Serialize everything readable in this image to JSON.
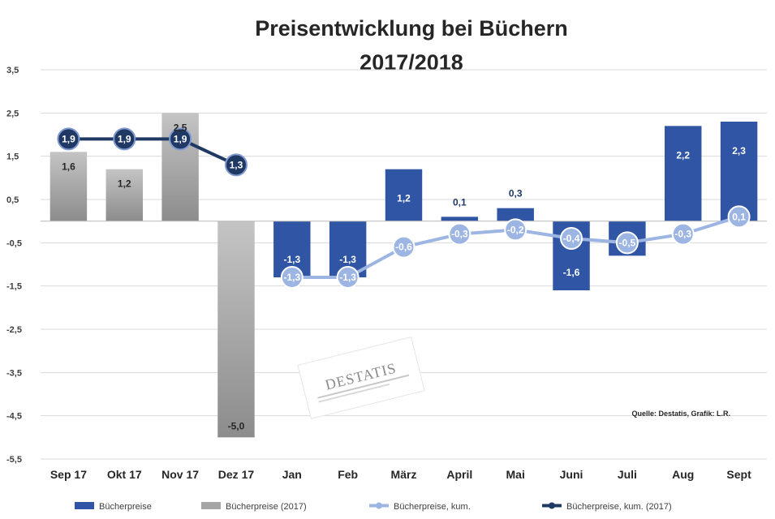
{
  "chart_data": {
    "type": "bar",
    "title_line1": "Preisentwicklung bei Büchern",
    "title_line2": "2017/2018",
    "categories": [
      "Sep 17",
      "Okt 17",
      "Nov 17",
      "Dez 17",
      "Jan",
      "Feb",
      "März",
      "April",
      "Mai",
      "Juni",
      "Juli",
      "Aug",
      "Sept"
    ],
    "ylim": [
      -5.5,
      3.5
    ],
    "yticks": [
      3.5,
      2.5,
      1.5,
      0.5,
      -0.5,
      -1.5,
      -2.5,
      -3.5,
      -4.5,
      -5.5
    ],
    "ytick_labels": [
      "3,5",
      "2,5",
      "1,5",
      "0,5",
      "-0,5",
      "-1,5",
      "-2,5",
      "-3,5",
      "-4,5",
      "-5,5"
    ],
    "gridlines": true,
    "legend_position": "bottom",
    "series": [
      {
        "name": "Bücherpreise",
        "kind": "bar",
        "color": "#2f55a4",
        "values": [
          null,
          null,
          null,
          null,
          -1.3,
          -1.3,
          1.2,
          0.1,
          0.3,
          -1.6,
          -0.8,
          2.2,
          2.3
        ],
        "labels": [
          "",
          "",
          "",
          "",
          "-1,3",
          "-1,3",
          "1,2",
          "0,1",
          "0,3",
          "-1,6",
          "",
          "2,2",
          "2,3"
        ]
      },
      {
        "name": "Bücherpreise (2017)",
        "kind": "bar",
        "color": "#a6a6a6",
        "values": [
          1.6,
          1.2,
          2.5,
          -5.0,
          null,
          null,
          null,
          null,
          null,
          null,
          null,
          null,
          null
        ],
        "labels": [
          "1,6",
          "1,2",
          "2,5",
          "-5,0",
          "",
          "",
          "",
          "",
          "",
          "",
          "",
          "",
          ""
        ]
      },
      {
        "name": "Bücherpreise, kum.",
        "kind": "line",
        "color": "#9db5e2",
        "values": [
          null,
          null,
          null,
          null,
          -1.3,
          -1.3,
          -0.6,
          -0.3,
          -0.2,
          -0.4,
          -0.5,
          -0.3,
          0.1
        ],
        "labels": [
          "",
          "",
          "",
          "",
          "-1,3",
          "-1,3",
          "-0,6",
          "-0,3",
          "-0,2",
          "-0,4",
          "-0,5",
          "-0,3",
          "0,1"
        ]
      },
      {
        "name": "Bücherpreise, kum. (2017)",
        "kind": "line",
        "color": "#203864",
        "values": [
          1.9,
          1.9,
          1.9,
          1.3,
          null,
          null,
          null,
          null,
          null,
          null,
          null,
          null,
          null
        ],
        "labels": [
          "1,9",
          "1,9",
          "1,9",
          "1,3",
          "",
          "",
          "",
          "",
          "",
          "",
          "",
          "",
          ""
        ]
      }
    ],
    "source_note": "Quelle: Destatis, Grafik: L.R.",
    "watermark_text": "DESTATIS"
  }
}
